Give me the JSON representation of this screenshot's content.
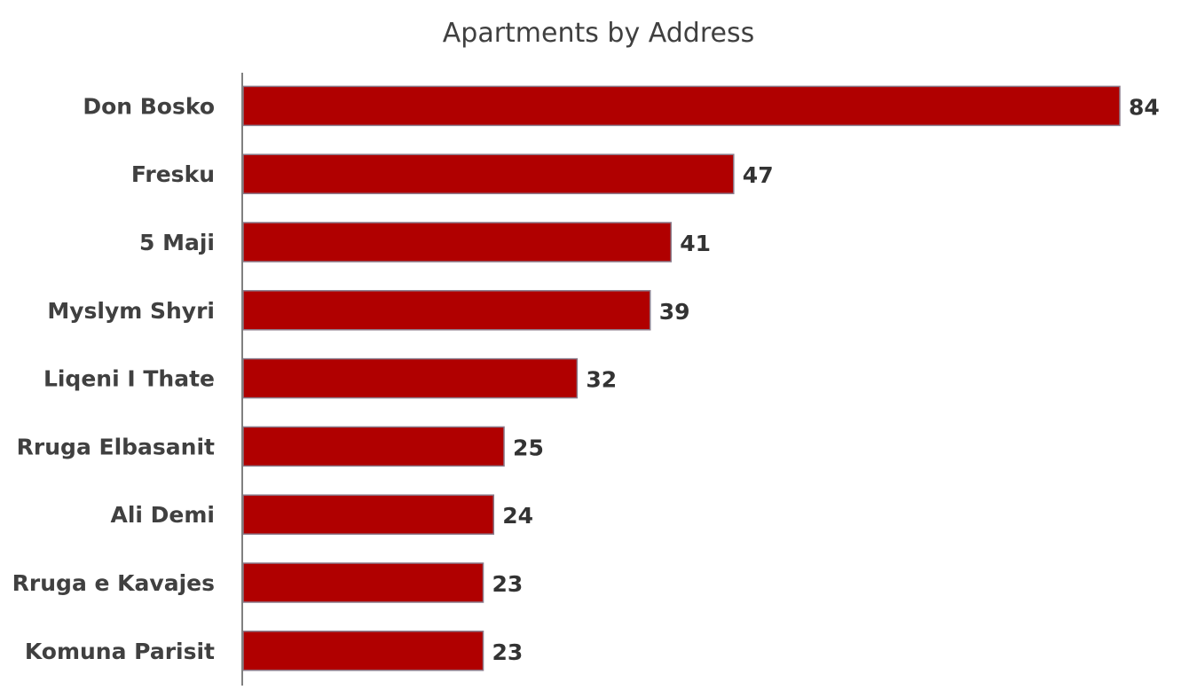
{
  "chart_data": {
    "type": "bar",
    "orientation": "horizontal",
    "title": "Apartments by Address",
    "xlabel": "",
    "ylabel": "",
    "categories": [
      "Don Bosko",
      "Fresku",
      "5 Maji",
      "Myslym Shyri",
      "Liqeni I Thate",
      "Rruga Elbasanit",
      "Ali Demi",
      "Rruga e Kavajes",
      "Komuna Parisit"
    ],
    "values": [
      84,
      47,
      41,
      39,
      32,
      25,
      24,
      23,
      23
    ],
    "xlim": [
      0,
      84
    ],
    "grid": false,
    "legend": "none",
    "bar_color": "#B00000",
    "bar_border_color": "#8A7A8A",
    "axis_color": "#808080"
  }
}
